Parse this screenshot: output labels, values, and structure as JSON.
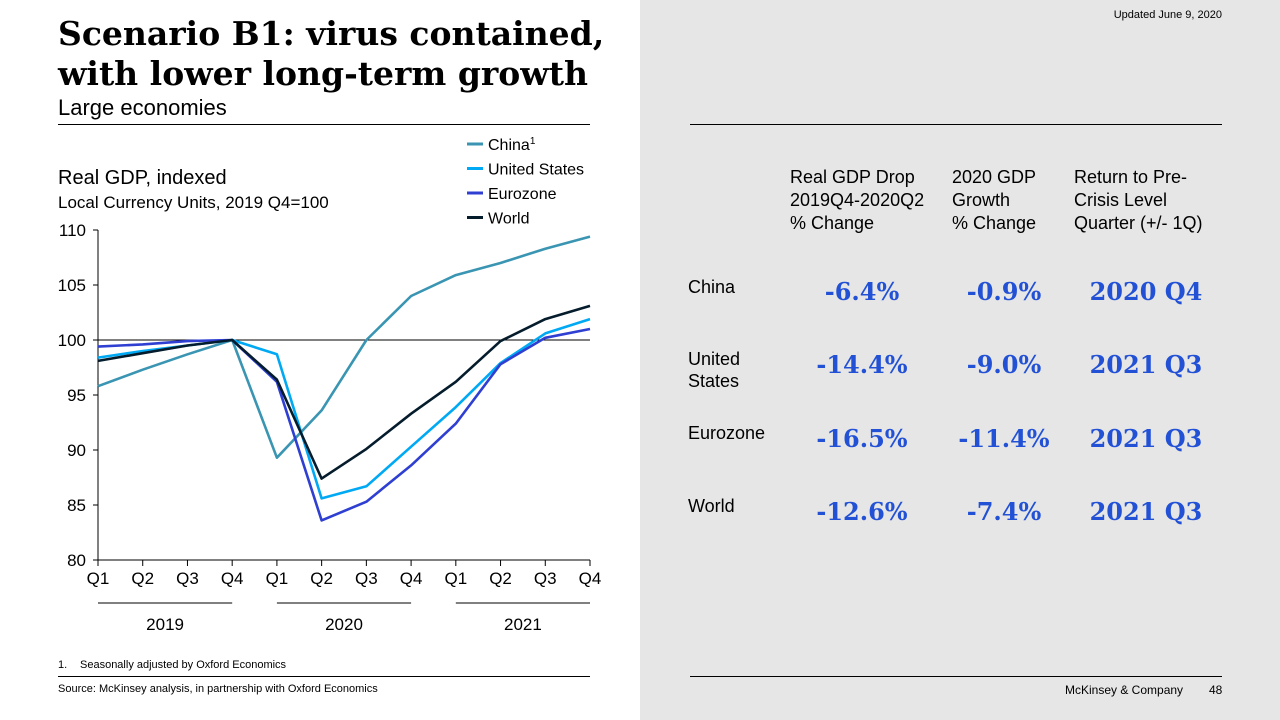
{
  "header": {
    "title_line1": "Scenario B1: virus contained,",
    "title_line2": "with lower long-term growth",
    "subtitle": "Large economies",
    "updated": "Updated June 9, 2020"
  },
  "chart_data": {
    "type": "line",
    "title": "Real GDP, indexed",
    "subtitle": "Local Currency Units, 2019 Q4=100",
    "categories": [
      "Q1",
      "Q2",
      "Q3",
      "Q4",
      "Q1",
      "Q2",
      "Q3",
      "Q4",
      "Q1",
      "Q2",
      "Q3",
      "Q4"
    ],
    "years": [
      "2019",
      "2020",
      "2021"
    ],
    "ylim": [
      80,
      110
    ],
    "yticks": [
      80,
      85,
      90,
      95,
      100,
      105,
      110
    ],
    "reference_line": 100,
    "legend_position": "top-right",
    "series": [
      {
        "name": "China",
        "sup": "1",
        "color": "#3a95b3",
        "values": [
          95.8,
          97.3,
          98.7,
          100,
          89.3,
          93.6,
          100.0,
          104.0,
          105.9,
          107.0,
          108.3,
          109.4
        ]
      },
      {
        "name": "United States",
        "sup": "",
        "color": "#00a9f4",
        "values": [
          98.4,
          99.0,
          99.5,
          100,
          98.7,
          85.6,
          86.7,
          90.3,
          93.9,
          97.9,
          100.6,
          101.9
        ]
      },
      {
        "name": "Eurozone",
        "sup": "",
        "color": "#2e3fd2",
        "values": [
          99.4,
          99.6,
          99.9,
          100,
          96.2,
          83.6,
          85.3,
          88.6,
          92.4,
          97.8,
          100.2,
          101.0
        ]
      },
      {
        "name": "World",
        "sup": "",
        "color": "#051c2c",
        "values": [
          98.1,
          98.8,
          99.5,
          100,
          96.4,
          87.4,
          90.1,
          93.3,
          96.2,
          99.9,
          101.9,
          103.1
        ]
      }
    ]
  },
  "notes": {
    "footnote_num": "1.",
    "footnote_text": "Seasonally adjusted by Oxford Economics",
    "source": "Source: McKinsey analysis, in partnership with Oxford Economics"
  },
  "table": {
    "headers": [
      "Real GDP Drop\n2019Q4-2020Q2\n% Change",
      "2020 GDP\nGrowth\n% Change",
      "Return to Pre-\nCrisis Level\nQuarter (+/- 1Q)"
    ],
    "rows": [
      {
        "label": "China",
        "values": [
          "-6.4%",
          "-0.9%",
          "2020 Q4"
        ]
      },
      {
        "label": "United States",
        "values": [
          "-14.4%",
          "-9.0%",
          "2021 Q3"
        ]
      },
      {
        "label": "Eurozone",
        "values": [
          "-16.5%",
          "-11.4%",
          "2021 Q3"
        ]
      },
      {
        "label": "World",
        "values": [
          "-12.6%",
          "-7.4%",
          "2021 Q3"
        ]
      }
    ],
    "value_color": "#2251d6"
  },
  "footer": {
    "brand": "McKinsey & Company",
    "page": "48"
  }
}
